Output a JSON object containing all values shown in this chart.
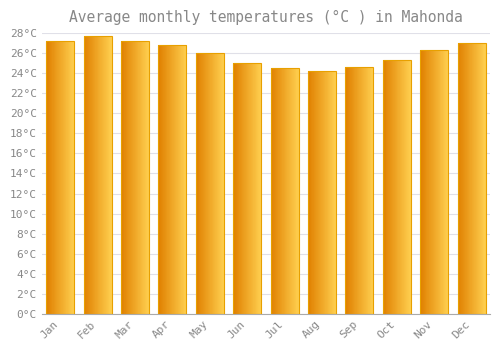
{
  "title": "Average monthly temperatures (°C ) in Mahonda",
  "months": [
    "Jan",
    "Feb",
    "Mar",
    "Apr",
    "May",
    "Jun",
    "Jul",
    "Aug",
    "Sep",
    "Oct",
    "Nov",
    "Dec"
  ],
  "values": [
    27.2,
    27.7,
    27.2,
    26.8,
    26.0,
    25.0,
    24.5,
    24.2,
    24.6,
    25.3,
    26.3,
    27.0
  ],
  "bar_color_left": "#E08000",
  "bar_color_right": "#FFD050",
  "bar_edge_color": "#E8A000",
  "background_color": "#FFFFFF",
  "grid_color": "#E0E0E8",
  "text_color": "#888888",
  "ylim": [
    0,
    28
  ],
  "yticks": [
    0,
    2,
    4,
    6,
    8,
    10,
    12,
    14,
    16,
    18,
    20,
    22,
    24,
    26,
    28
  ],
  "title_fontsize": 10.5,
  "tick_fontsize": 8,
  "bar_width": 0.75,
  "n_gradient_steps": 50
}
